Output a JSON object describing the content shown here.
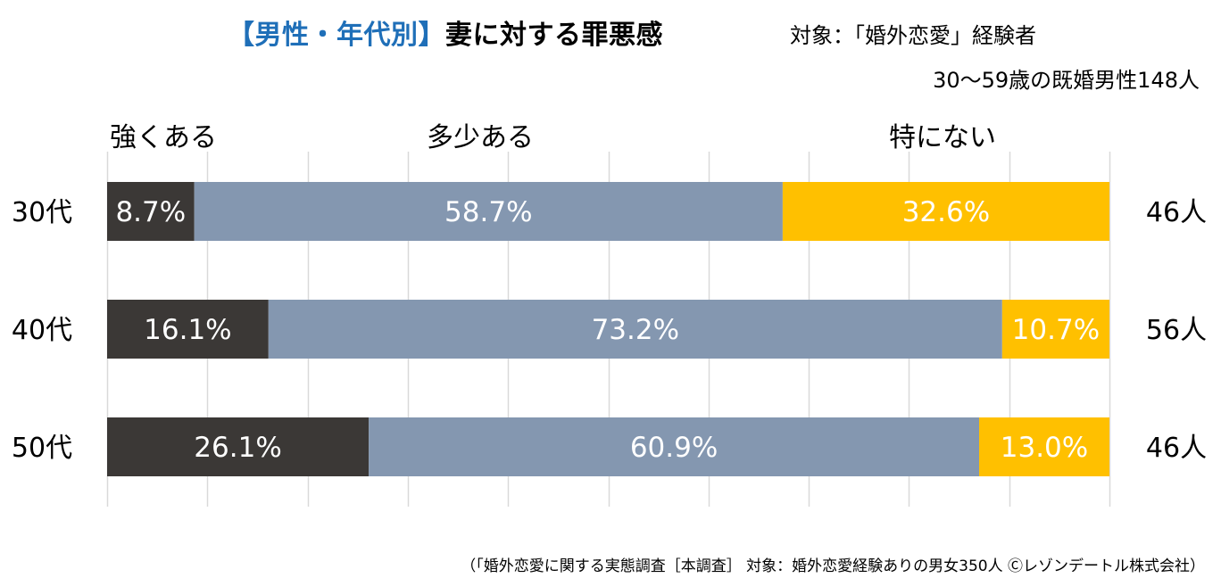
{
  "header": {
    "title_prefix": "【男性・年代別】",
    "title_main": "妻に対する罪悪感",
    "subject_line1": "対象：「婚外恋愛」経験者",
    "subject_line2": "30〜59歳の既婚男性148人"
  },
  "footer": {
    "source": "（「婚外恋愛に関する実態調査［本調査］ 対象：婚外恋愛経験ありの男女350人 Ⓒレゾンデートル株式会社）"
  },
  "colors": {
    "strong": "#3b3836",
    "some": "#8497b0",
    "none": "#ffc000",
    "grid": "#d9d9d9"
  },
  "chart_data": {
    "type": "bar",
    "orientation": "horizontal",
    "stacked": true,
    "percent": true,
    "categories": [
      "30代",
      "40代",
      "50代"
    ],
    "series": [
      {
        "name": "強くある",
        "values": [
          8.7,
          16.1,
          26.1
        ],
        "labels": [
          "8.7%",
          "16.1%",
          "26.1%"
        ]
      },
      {
        "name": "多少ある",
        "values": [
          58.7,
          73.2,
          60.9
        ],
        "labels": [
          "58.7%",
          "73.2%",
          "60.9%"
        ]
      },
      {
        "name": "特にない",
        "values": [
          32.6,
          10.7,
          13.0
        ],
        "labels": [
          "32.6%",
          "10.7%",
          "13.0%"
        ]
      }
    ],
    "counts": [
      "46人",
      "56人",
      "46人"
    ],
    "xlim": [
      0,
      100
    ],
    "grid": true,
    "legend": "top"
  }
}
